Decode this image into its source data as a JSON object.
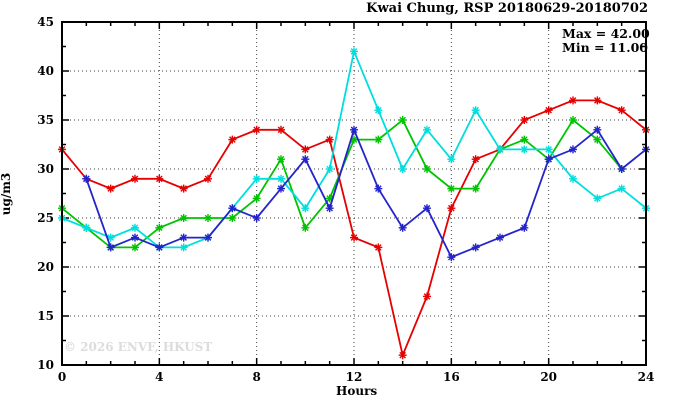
{
  "title": "Kwai Chung, RSP 20180629-20180702",
  "annotation": {
    "max_label": "Max = 42.00",
    "min_label": "Min = 11.00"
  },
  "watermark": "© 2026 ENVF, HKUST",
  "chart_data": {
    "type": "line",
    "title": "Kwai Chung, RSP 20180629-20180702",
    "xlabel": "Hours",
    "ylabel": "ug/m3",
    "xlim": [
      0,
      24
    ],
    "ylim": [
      10,
      45
    ],
    "x_major_ticks": [
      0,
      4,
      8,
      12,
      16,
      20,
      24
    ],
    "x_minor_step": 1,
    "y_major_ticks": [
      10,
      15,
      20,
      25,
      30,
      35,
      40,
      45
    ],
    "y_minor_step": 2.5,
    "grid": true,
    "legend_position": "none",
    "stats": {
      "max": 42.0,
      "min": 11.0
    },
    "x": [
      0,
      1,
      2,
      3,
      4,
      5,
      6,
      7,
      8,
      9,
      10,
      11,
      12,
      13,
      14,
      15,
      16,
      17,
      18,
      19,
      20,
      21,
      22,
      23,
      24
    ],
    "series": [
      {
        "name": "series-red",
        "color": "#e60000",
        "values": [
          32,
          29,
          28,
          29,
          29,
          28,
          29,
          33,
          34,
          34,
          32,
          33,
          23,
          22,
          11,
          17,
          26,
          31,
          32,
          35,
          36,
          37,
          37,
          36,
          34
        ]
      },
      {
        "name": "series-green",
        "color": "#00c400",
        "values": [
          26,
          24,
          22,
          22,
          24,
          25,
          25,
          25,
          27,
          31,
          24,
          27,
          33,
          33,
          35,
          30,
          28,
          28,
          32,
          33,
          31,
          35,
          33,
          30,
          null
        ]
      },
      {
        "name": "series-cyan",
        "color": "#00dede",
        "values": [
          25,
          24,
          23,
          24,
          22,
          22,
          23,
          26,
          29,
          29,
          26,
          30,
          42,
          36,
          30,
          34,
          31,
          36,
          32,
          32,
          32,
          29,
          27,
          28,
          26
        ]
      },
      {
        "name": "series-blue",
        "color": "#2424cc",
        "values": [
          null,
          29,
          22,
          23,
          22,
          23,
          23,
          26,
          25,
          28,
          31,
          26,
          34,
          28,
          24,
          26,
          21,
          22,
          23,
          24,
          31,
          32,
          34,
          30,
          32
        ]
      }
    ]
  },
  "colors": {
    "axis": "#000000",
    "grid": "#404040",
    "watermark": "#dcdcdc"
  }
}
